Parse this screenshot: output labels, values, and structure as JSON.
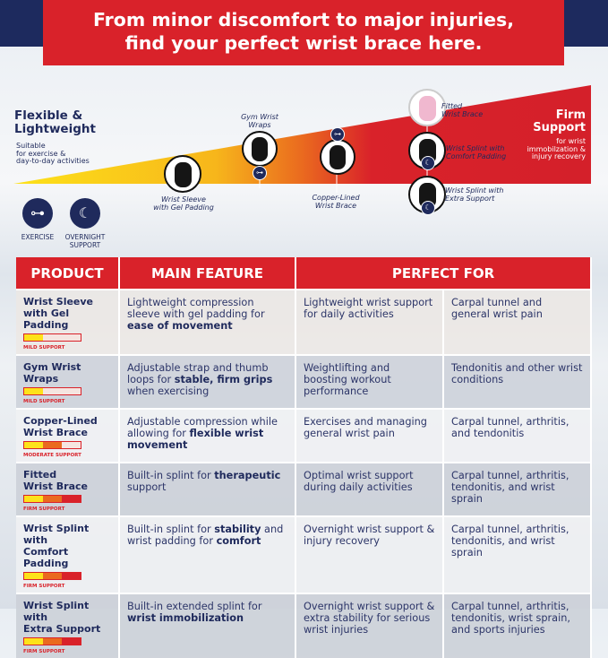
{
  "banner": {
    "line1": "From minor discomfort to major injuries,",
    "line2": "find your perfect wrist brace here."
  },
  "scale": {
    "left": {
      "title1": "Flexible &",
      "title2": "Lightweight",
      "sub1": "Suitable",
      "sub2": "for exercise &",
      "sub3": "day-to-day activities"
    },
    "right": {
      "title1": "Firm",
      "title2": "Support",
      "sub1": "for wrist",
      "sub2": "immobilzation &",
      "sub3": "injury recovery"
    },
    "products": [
      {
        "l1": "Wrist Sleeve",
        "l2": "with Gel Padding"
      },
      {
        "l1": "Gym Wrist",
        "l2": "Wraps"
      },
      {
        "l1": "Copper-Lined",
        "l2": "Wrist Brace"
      },
      {
        "l1": "Fitted",
        "l2": "Wrist Brace"
      },
      {
        "l1": "Wrist Splint with",
        "l2": "Comfort Padding"
      },
      {
        "l1": "Wrist Splint with",
        "l2": "Extra Support"
      }
    ],
    "gradient_colors": [
      "#fde21a",
      "#f5a21c",
      "#e8561e",
      "#d9222a"
    ]
  },
  "legend": [
    {
      "icon": "dumbbell-icon",
      "label1": "EXERCISE",
      "label2": ""
    },
    {
      "icon": "moon-icon",
      "label1": "OVERNIGHT",
      "label2": "SUPPORT"
    }
  ],
  "table": {
    "headers": [
      "PRODUCT",
      "MAIN FEATURE",
      "PERFECT FOR"
    ],
    "rows": [
      {
        "name1": "Wrist Sleeve",
        "name2": "with Gel Padding",
        "support": "MILD SUPPORT",
        "level": 1,
        "feature": [
          {
            "t": "Lightweight compression sleeve with gel padding for "
          },
          {
            "t": "ease of movement",
            "b": true
          }
        ],
        "for1": "Lightweight wrist support for daily activities",
        "for2": "Carpal tunnel and general wrist pain"
      },
      {
        "name1": "Gym Wrist Wraps",
        "name2": "",
        "support": "MILD SUPPORT",
        "level": 1,
        "feature": [
          {
            "t": "Adjustable strap and thumb loops for "
          },
          {
            "t": "stable, firm grips",
            "b": true
          },
          {
            "t": " when exercising"
          }
        ],
        "for1": "Weightlifting and boosting workout performance",
        "for2": "Tendonitis and other wrist conditions"
      },
      {
        "name1": "Copper-Lined",
        "name2": "Wrist Brace",
        "support": "MODERATE SUPPORT",
        "level": 2,
        "feature": [
          {
            "t": "Adjustable compression while allowing for "
          },
          {
            "t": "flexible wrist movement",
            "b": true
          }
        ],
        "for1": "Exercises and managing general wrist pain",
        "for2": "Carpal tunnel, arthritis, and tendonitis"
      },
      {
        "name1": "Fitted",
        "name2": "Wrist Brace",
        "support": "FIRM SUPPORT",
        "level": 3,
        "feature": [
          {
            "t": "Built-in splint for "
          },
          {
            "t": "therapeutic",
            "b": true
          },
          {
            "t": " support"
          }
        ],
        "for1": "Optimal wrist support during daily activities",
        "for2": "Carpal tunnel, arthritis, tendonitis, and wrist sprain"
      },
      {
        "name1": "Wrist Splint with",
        "name2": "Comfort Padding",
        "support": "FIRM SUPPORT",
        "level": 3,
        "feature": [
          {
            "t": "Built-in splint for "
          },
          {
            "t": "stability",
            "b": true
          },
          {
            "t": " and wrist padding for "
          },
          {
            "t": "comfort",
            "b": true
          }
        ],
        "for1": "Overnight wrist support & injury recovery",
        "for2": "Carpal tunnel, arthritis, tendonitis, and wrist sprain"
      },
      {
        "name1": "Wrist Splint with",
        "name2": "Extra Support",
        "support": "FIRM SUPPORT",
        "level": 3,
        "feature": [
          {
            "t": "Built-in extended splint for "
          },
          {
            "t": "wrist immobilization",
            "b": true
          }
        ],
        "for1": "Overnight wrist support & extra stability for serious wrist injuries",
        "for2": "Carpal tunnel, arthritis, tendonitis, wrist sprain, and sports injuries"
      }
    ]
  }
}
